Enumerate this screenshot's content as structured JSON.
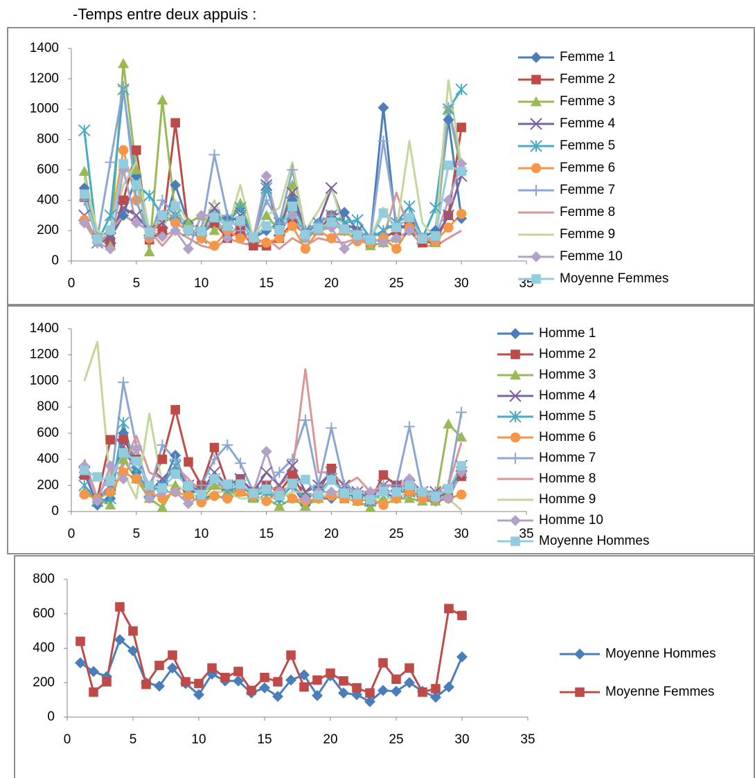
{
  "heading": "-Temps entre deux appuis :",
  "chart_data": [
    {
      "type": "line",
      "x": [
        1,
        2,
        3,
        4,
        5,
        6,
        7,
        8,
        9,
        10,
        11,
        12,
        13,
        14,
        15,
        16,
        17,
        18,
        19,
        20,
        21,
        22,
        23,
        24,
        25,
        26,
        27,
        28,
        29,
        30
      ],
      "xlim": [
        0,
        35
      ],
      "xticks": [
        0,
        5,
        10,
        15,
        20,
        25,
        30,
        35
      ],
      "ylim": [
        0,
        1400
      ],
      "yticks": [
        0,
        200,
        400,
        600,
        800,
        1000,
        1200,
        1400
      ],
      "grid": false,
      "legend": "right",
      "series": [
        {
          "name": "Femme 1",
          "color": "#4a7ebb",
          "marker": "diamond",
          "values": [
            480,
            120,
            150,
            300,
            560,
            150,
            180,
            500,
            250,
            200,
            300,
            280,
            350,
            150,
            200,
            250,
            400,
            180,
            250,
            300,
            320,
            200,
            150,
            1010,
            200,
            250,
            150,
            200,
            930,
            280
          ]
        },
        {
          "name": "Femme 2",
          "color": "#be4b48",
          "marker": "square",
          "values": [
            420,
            150,
            120,
            400,
            730,
            140,
            200,
            910,
            200,
            180,
            250,
            150,
            200,
            100,
            100,
            150,
            250,
            180,
            200,
            300,
            200,
            150,
            120,
            150,
            200,
            250,
            120,
            130,
            300,
            880
          ]
        },
        {
          "name": "Femme 3",
          "color": "#98b954",
          "marker": "triangle",
          "values": [
            590,
            150,
            100,
            1300,
            600,
            60,
            1060,
            300,
            250,
            300,
            200,
            250,
            380,
            150,
            300,
            200,
            500,
            150,
            200,
            250,
            200,
            180,
            100,
            120,
            150,
            200,
            150,
            120,
            1000,
            600
          ]
        },
        {
          "name": "Femme 4",
          "color": "#7d60a0",
          "marker": "x",
          "values": [
            300,
            120,
            150,
            350,
            300,
            200,
            250,
            300,
            200,
            200,
            350,
            250,
            300,
            150,
            500,
            200,
            450,
            200,
            250,
            480,
            250,
            200,
            150,
            200,
            250,
            200,
            150,
            150,
            300,
            560
          ]
        },
        {
          "name": "Femme 5",
          "color": "#46aac5",
          "marker": "star",
          "values": [
            860,
            120,
            300,
            1130,
            500,
            430,
            300,
            300,
            200,
            150,
            300,
            250,
            350,
            150,
            480,
            250,
            300,
            200,
            250,
            300,
            250,
            270,
            150,
            200,
            250,
            360,
            150,
            350,
            1000,
            1130
          ]
        },
        {
          "name": "Femme 6",
          "color": "#f79646",
          "marker": "circle",
          "values": [
            270,
            150,
            200,
            730,
            400,
            150,
            300,
            250,
            200,
            150,
            100,
            200,
            150,
            150,
            120,
            150,
            230,
            80,
            200,
            150,
            200,
            130,
            120,
            150,
            80,
            220,
            150,
            130,
            220,
            310
          ]
        },
        {
          "name": "Femme 7",
          "color": "#8ba6d1",
          "marker": "plus",
          "values": [
            400,
            150,
            650,
            1150,
            400,
            150,
            400,
            300,
            200,
            200,
            700,
            300,
            200,
            150,
            400,
            250,
            600,
            200,
            250,
            300,
            200,
            200,
            150,
            790,
            250,
            300,
            150,
            150,
            1010,
            640
          ]
        },
        {
          "name": "Femme 8",
          "color": "#d99694",
          "marker": "none",
          "values": [
            300,
            100,
            200,
            300,
            250,
            200,
            100,
            200,
            150,
            100,
            80,
            150,
            120,
            100,
            150,
            80,
            150,
            100,
            150,
            130,
            120,
            150,
            120,
            150,
            450,
            200,
            100,
            100,
            150,
            200
          ]
        },
        {
          "name": "Femme 9",
          "color": "#c3d69b",
          "marker": "none",
          "values": [
            550,
            200,
            150,
            500,
            650,
            200,
            200,
            400,
            250,
            200,
            400,
            200,
            500,
            150,
            300,
            350,
            650,
            200,
            330,
            490,
            200,
            150,
            150,
            350,
            200,
            790,
            250,
            150,
            1190,
            630
          ]
        },
        {
          "name": "Femme 10",
          "color": "#b3a2c7",
          "marker": "diamond",
          "values": [
            250,
            120,
            80,
            600,
            250,
            200,
            160,
            200,
            80,
            300,
            300,
            150,
            250,
            150,
            560,
            200,
            300,
            150,
            200,
            220,
            80,
            150,
            150,
            120,
            150,
            200,
            150,
            150,
            400,
            640
          ]
        },
        {
          "name": "Moyenne Femmes",
          "color": "#93cddd",
          "marker": "square",
          "values": [
            440,
            145,
            205,
            640,
            500,
            190,
            300,
            360,
            205,
            195,
            285,
            230,
            265,
            155,
            230,
            205,
            360,
            175,
            215,
            255,
            210,
            170,
            140,
            315,
            220,
            285,
            145,
            165,
            630,
            590
          ]
        }
      ]
    },
    {
      "type": "line",
      "x": [
        1,
        2,
        3,
        4,
        5,
        6,
        7,
        8,
        9,
        10,
        11,
        12,
        13,
        14,
        15,
        16,
        17,
        18,
        19,
        20,
        21,
        22,
        23,
        24,
        25,
        26,
        27,
        28,
        29,
        30
      ],
      "xlim": [
        0,
        35
      ],
      "xticks": [
        0,
        5,
        10,
        15,
        20,
        25,
        30,
        35
      ],
      "ylim": [
        0,
        1400
      ],
      "yticks": [
        0,
        200,
        400,
        600,
        800,
        1000,
        1200,
        1400
      ],
      "grid": false,
      "legend": "right",
      "series": [
        {
          "name": "Homme 1",
          "color": "#4a7ebb",
          "marker": "diamond",
          "values": [
            300,
            50,
            100,
            600,
            300,
            150,
            200,
            430,
            150,
            100,
            120,
            100,
            200,
            150,
            150,
            100,
            200,
            50,
            100,
            100,
            150,
            100,
            80,
            150,
            100,
            150,
            100,
            80,
            100,
            300
          ]
        },
        {
          "name": "Homme 2",
          "color": "#be4b48",
          "marker": "square",
          "values": [
            280,
            100,
            550,
            550,
            400,
            200,
            400,
            780,
            380,
            200,
            490,
            200,
            250,
            150,
            200,
            150,
            280,
            100,
            150,
            330,
            100,
            100,
            80,
            280,
            200,
            150,
            150,
            100,
            150,
            270
          ]
        },
        {
          "name": "Homme 3",
          "color": "#98b954",
          "marker": "triangle",
          "values": [
            150,
            100,
            50,
            400,
            250,
            100,
            30,
            200,
            150,
            100,
            200,
            150,
            150,
            100,
            100,
            40,
            100,
            40,
            100,
            150,
            100,
            80,
            30,
            100,
            100,
            100,
            80,
            80,
            670,
            570
          ]
        },
        {
          "name": "Homme 4",
          "color": "#7d60a0",
          "marker": "x",
          "values": [
            300,
            80,
            200,
            500,
            300,
            150,
            250,
            350,
            200,
            150,
            300,
            200,
            250,
            150,
            300,
            200,
            350,
            150,
            200,
            300,
            200,
            150,
            100,
            200,
            200,
            200,
            150,
            150,
            150,
            350
          ]
        },
        {
          "name": "Homme 5",
          "color": "#46aac5",
          "marker": "star",
          "values": [
            200,
            80,
            100,
            680,
            300,
            150,
            200,
            350,
            150,
            150,
            250,
            150,
            200,
            120,
            150,
            100,
            200,
            100,
            150,
            250,
            150,
            120,
            80,
            150,
            150,
            150,
            120,
            120,
            150,
            300
          ]
        },
        {
          "name": "Homme 6",
          "color": "#f79646",
          "marker": "circle",
          "values": [
            130,
            100,
            150,
            300,
            250,
            150,
            100,
            150,
            120,
            70,
            120,
            100,
            150,
            120,
            80,
            150,
            100,
            80,
            100,
            120,
            100,
            80,
            100,
            50,
            100,
            150,
            100,
            100,
            100,
            130
          ]
        },
        {
          "name": "Homme 7",
          "color": "#8ba6d1",
          "marker": "plus",
          "values": [
            350,
            100,
            200,
            990,
            500,
            150,
            510,
            400,
            200,
            200,
            400,
            510,
            370,
            150,
            200,
            300,
            400,
            700,
            200,
            640,
            200,
            150,
            150,
            200,
            200,
            650,
            150,
            150,
            200,
            760
          ]
        },
        {
          "name": "Homme 8",
          "color": "#d99694",
          "marker": "none",
          "values": [
            400,
            100,
            300,
            350,
            580,
            300,
            250,
            350,
            250,
            150,
            200,
            200,
            200,
            150,
            150,
            200,
            300,
            1090,
            300,
            300,
            200,
            260,
            150,
            200,
            200,
            250,
            150,
            150,
            200,
            530
          ]
        },
        {
          "name": "Homme 9",
          "color": "#c3d69b",
          "marker": "none",
          "values": [
            1000,
            1300,
            200,
            300,
            100,
            750,
            200,
            200,
            150,
            100,
            150,
            150,
            100,
            100,
            100,
            100,
            150,
            150,
            100,
            150,
            100,
            100,
            100,
            100,
            100,
            150,
            150,
            100,
            100,
            10
          ]
        },
        {
          "name": "Homme 10",
          "color": "#b3a2c7",
          "marker": "diamond",
          "values": [
            350,
            80,
            350,
            250,
            480,
            100,
            150,
            150,
            60,
            120,
            250,
            200,
            200,
            150,
            460,
            150,
            200,
            100,
            150,
            150,
            150,
            150,
            150,
            150,
            150,
            250,
            150,
            100,
            100,
            300
          ]
        },
        {
          "name": "Moyenne Hommes",
          "color": "#93cddd",
          "marker": "square",
          "values": [
            315,
            265,
            235,
            450,
            385,
            200,
            180,
            285,
            195,
            130,
            250,
            210,
            210,
            140,
            170,
            120,
            215,
            245,
            125,
            240,
            140,
            130,
            90,
            155,
            150,
            200,
            150,
            115,
            175,
            350
          ]
        }
      ]
    },
    {
      "type": "line",
      "x": [
        1,
        2,
        3,
        4,
        5,
        6,
        7,
        8,
        9,
        10,
        11,
        12,
        13,
        14,
        15,
        16,
        17,
        18,
        19,
        20,
        21,
        22,
        23,
        24,
        25,
        26,
        27,
        28,
        29,
        30
      ],
      "xlim": [
        0,
        35
      ],
      "xticks": [
        0,
        5,
        10,
        15,
        20,
        25,
        30,
        35
      ],
      "ylim": [
        0,
        800
      ],
      "yticks": [
        0,
        200,
        400,
        600,
        800
      ],
      "grid": false,
      "legend": "right",
      "series": [
        {
          "name": "Moyenne Hommes",
          "color": "#4a7ebb",
          "marker": "diamond",
          "values": [
            315,
            265,
            235,
            450,
            385,
            200,
            180,
            285,
            195,
            130,
            250,
            210,
            210,
            140,
            170,
            120,
            215,
            245,
            125,
            240,
            140,
            130,
            90,
            155,
            150,
            200,
            150,
            115,
            175,
            350
          ]
        },
        {
          "name": "Moyenne Femmes",
          "color": "#be4b48",
          "marker": "square",
          "values": [
            440,
            145,
            205,
            640,
            500,
            190,
            300,
            360,
            205,
            195,
            285,
            230,
            265,
            155,
            230,
            205,
            360,
            175,
            215,
            255,
            210,
            170,
            140,
            315,
            220,
            285,
            145,
            165,
            630,
            590
          ]
        }
      ]
    }
  ]
}
